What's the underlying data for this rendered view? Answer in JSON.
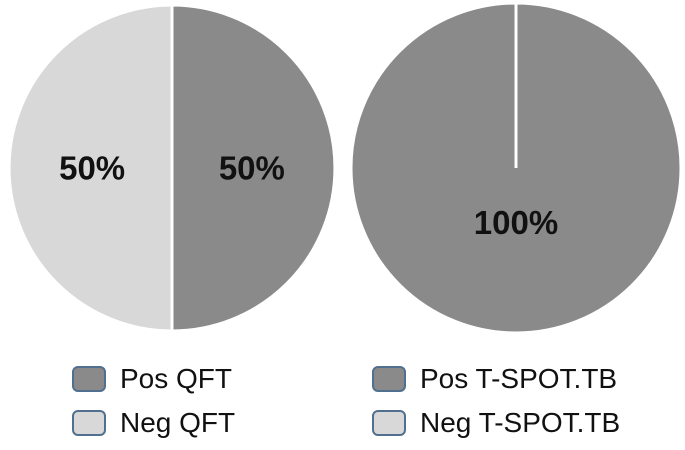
{
  "chart_data": [
    {
      "type": "pie",
      "categories": [
        "Pos QFT",
        "Neg QFT"
      ],
      "values": [
        50,
        50
      ],
      "data_labels": [
        "50%",
        "50%"
      ],
      "colors": [
        "#8a8a8a",
        "#d8d8d8"
      ],
      "legend": {
        "placement": "bottom",
        "entries": [
          "Pos QFT",
          "Neg QFT"
        ]
      }
    },
    {
      "type": "pie",
      "categories": [
        "Pos T-SPOT.TB",
        "Neg T-SPOT.TB"
      ],
      "values": [
        100,
        0
      ],
      "data_labels": [
        "100%",
        ""
      ],
      "colors": [
        "#8a8a8a",
        "#d8d8d8"
      ],
      "legend": {
        "placement": "bottom",
        "entries": [
          "Pos T-SPOT.TB",
          "Neg T-SPOT.TB"
        ]
      }
    }
  ]
}
